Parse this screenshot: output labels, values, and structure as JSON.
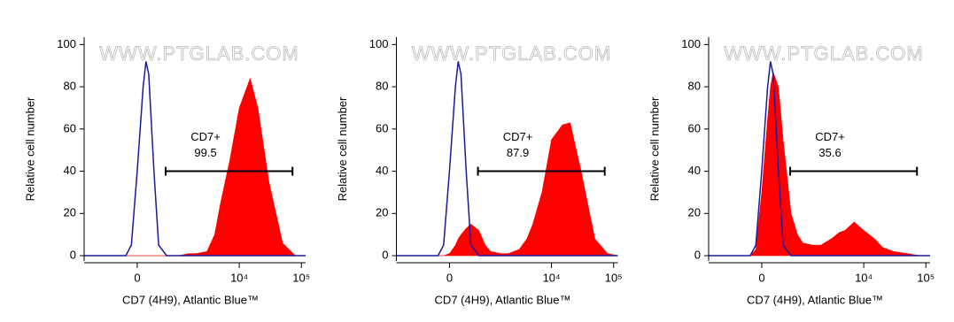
{
  "chart_data": [
    {
      "type": "line",
      "xscale": "biexponential",
      "watermark": "WWW.PTGLAB.COM",
      "xlabel": "CD7 (4H9), Atlantic Blue™",
      "ylabel": "Relative cell number",
      "x": [
        -1600,
        -1000,
        -500,
        -200,
        -100,
        0,
        100,
        150,
        200,
        300,
        400,
        600,
        800,
        1000,
        1500,
        2000,
        3000,
        4000,
        5000,
        7000,
        10000,
        15000,
        20000,
        30000,
        50000,
        80000,
        117000
      ],
      "series": [
        {
          "color": "#ff0000",
          "fill": true,
          "values": [
            0,
            0,
            0,
            0,
            0,
            0,
            0,
            0,
            0,
            0,
            0,
            0,
            0,
            0,
            1,
            1,
            2,
            10,
            25,
            45,
            70,
            84,
            70,
            35,
            6,
            0,
            0
          ]
        },
        {
          "color": "#1a1a9a",
          "fill": false,
          "values": [
            0,
            0,
            0,
            0,
            5,
            40,
            80,
            92,
            86,
            40,
            5,
            0,
            0,
            0,
            0,
            0,
            0,
            0,
            0,
            0,
            0,
            0,
            0,
            0,
            0,
            0,
            0
          ]
        }
      ],
      "xlim": [
        -1600,
        117000
      ],
      "ylim": [
        -2.5,
        103.5
      ],
      "xticks": [
        0,
        {
          "value": 10000,
          "label": "10⁴"
        },
        {
          "value": 100000,
          "label": "10⁵"
        }
      ],
      "yticks": [
        0,
        20,
        40,
        60,
        80,
        100
      ],
      "gate": {
        "label": "CD7+",
        "value": 99.5,
        "range": [
          575,
          72000
        ],
        "y": 40
      }
    },
    {
      "type": "line",
      "xscale": "biexponential",
      "watermark": "WWW.PTGLAB.COM",
      "xlabel": "CD7 (4H9), Atlantic Blue™",
      "ylabel": "Relative cell number",
      "x": [
        -1600,
        -1000,
        -500,
        -200,
        -100,
        0,
        100,
        150,
        200,
        300,
        400,
        600,
        800,
        1000,
        1500,
        2000,
        3000,
        4000,
        5000,
        7000,
        10000,
        15000,
        20000,
        30000,
        50000,
        80000,
        117000
      ],
      "series": [
        {
          "color": "#ff0000",
          "fill": true,
          "values": [
            0,
            0,
            0,
            0,
            0,
            1,
            5,
            8,
            10,
            13,
            15,
            12,
            5,
            2,
            1,
            1,
            3,
            8,
            15,
            30,
            55,
            62,
            63,
            40,
            8,
            1,
            0
          ]
        },
        {
          "color": "#1a1a9a",
          "fill": false,
          "values": [
            0,
            0,
            0,
            0,
            5,
            40,
            80,
            92,
            86,
            40,
            5,
            0,
            0,
            0,
            0,
            0,
            0,
            0,
            0,
            0,
            0,
            0,
            0,
            0,
            0,
            0,
            0
          ]
        }
      ],
      "xlim": [
        -1600,
        117000
      ],
      "ylim": [
        -2.5,
        103.5
      ],
      "xticks": [
        0,
        {
          "value": 10000,
          "label": "10⁴"
        },
        {
          "value": 100000,
          "label": "10⁵"
        }
      ],
      "yticks": [
        0,
        20,
        40,
        60,
        80,
        100
      ],
      "gate": {
        "label": "CD7+",
        "value": 87.9,
        "range": [
          575,
          72000
        ],
        "y": 40
      }
    },
    {
      "type": "line",
      "xscale": "biexponential",
      "watermark": "WWW.PTGLAB.COM",
      "xlabel": "CD7 (4H9), Atlantic Blue™",
      "ylabel": "Relative cell number",
      "x": [
        -1600,
        -1000,
        -500,
        -200,
        -100,
        0,
        100,
        150,
        200,
        300,
        400,
        600,
        800,
        1000,
        1500,
        2000,
        3000,
        4000,
        5000,
        7000,
        10000,
        15000,
        20000,
        30000,
        50000,
        80000,
        117000
      ],
      "series": [
        {
          "color": "#ff0000",
          "fill": true,
          "values": [
            0,
            0,
            0,
            0,
            3,
            30,
            65,
            80,
            87,
            80,
            55,
            20,
            10,
            6,
            5,
            5,
            8,
            11,
            12,
            16,
            12,
            8,
            4,
            2,
            1,
            0,
            0
          ]
        },
        {
          "color": "#1a1a9a",
          "fill": false,
          "values": [
            0,
            0,
            0,
            0,
            5,
            40,
            80,
            92,
            86,
            40,
            5,
            0,
            0,
            0,
            0,
            0,
            0,
            0,
            0,
            0,
            0,
            0,
            0,
            0,
            0,
            0,
            0
          ]
        }
      ],
      "xlim": [
        -1600,
        117000
      ],
      "ylim": [
        -2.5,
        103.5
      ],
      "xticks": [
        0,
        {
          "value": 10000,
          "label": "10⁴"
        },
        {
          "value": 100000,
          "label": "10⁵"
        }
      ],
      "yticks": [
        0,
        20,
        40,
        60,
        80,
        100
      ],
      "gate": {
        "label": "CD7+",
        "value": 35.6,
        "range": [
          575,
          72000
        ],
        "y": 40
      }
    }
  ]
}
